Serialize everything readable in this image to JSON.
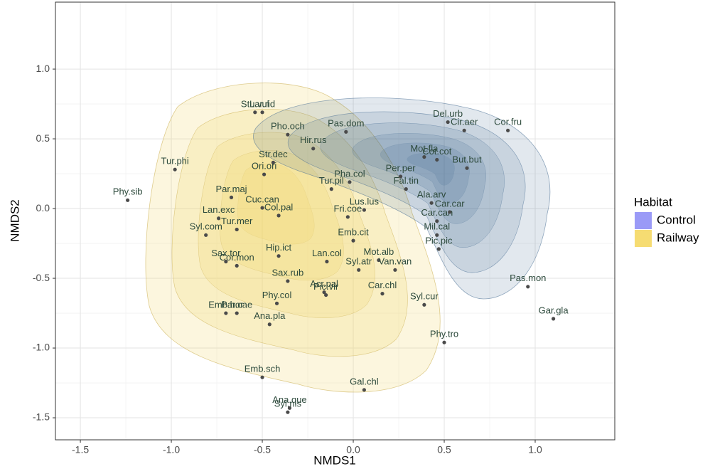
{
  "chart_data": {
    "type": "scatter",
    "x_label": "NMDS1",
    "y_label": "NMDS2",
    "xlim": [
      -1.637,
      1.4375
    ],
    "ylim": [
      -1.658,
      1.48
    ],
    "xticks": [
      -1.5,
      {
        "value": -1.0,
        "label": "-1.0"
      },
      -0.5,
      {
        "value": 0.0,
        "label": "0.0"
      },
      0.5,
      {
        "value": 1.0,
        "label": "1.0"
      }
    ],
    "yticks": [
      -1.5,
      {
        "value": -1.0,
        "label": "-1.0"
      },
      -0.5,
      {
        "value": 0.0,
        "label": "0.0"
      },
      0.5,
      {
        "value": 1.0,
        "label": "1.0"
      }
    ],
    "grid": true,
    "point_color": "#4a4a4a",
    "label_color": "#2d4a3c",
    "labels": [
      "Phy.sib",
      "Tur.phi",
      "Stu.vul",
      "Lar.rid",
      "Pho.och",
      "Pas.dom",
      "Del.urb",
      "Cor.fru",
      "Cir.aer",
      "Hir.rus",
      "Mot.fla",
      "Cot.cot",
      "But.but",
      "Str.dec",
      "Ori.ori",
      "Par.maj",
      "Pha.col",
      "Tur.pil",
      "Per.per",
      "Fal.tin",
      "Ala.arv",
      "Cuc.can",
      "Col.pal",
      "Lus.lus",
      "Car.can",
      "Car.car",
      "Lan.exc",
      "Syl.com",
      "Fri.coe",
      "Emb.cit",
      "Mil.cal",
      "Tur.mer",
      "Sax.tor",
      "Lan.col",
      "Pic.pic",
      "Hip.ict",
      "Cor.mon",
      "Mot.alb",
      "Van.van",
      "Syl.atr",
      "Sax.rub",
      "Acr.pal",
      "Pic.vir",
      "Car.chl",
      "Par.cae",
      "Phy.col",
      "Emb.hor",
      "Ana.pla",
      "Syl.cur",
      "Phy.tro",
      "Pas.mon",
      "Gar.gla",
      "Emb.sch",
      "Gal.chl",
      "Ana.que",
      "Syl.nis"
    ],
    "x": [
      -1.24,
      -0.98,
      -0.54,
      -0.5,
      -0.36,
      -0.04,
      0.52,
      0.85,
      0.61,
      -0.22,
      0.39,
      0.46,
      0.625,
      -0.44,
      -0.49,
      -0.67,
      -0.02,
      -0.12,
      0.26,
      0.29,
      0.43,
      -0.5,
      -0.41,
      0.06,
      0.46,
      0.53,
      -0.74,
      -0.81,
      -0.03,
      0.0,
      0.46,
      -0.64,
      -0.7,
      -0.145,
      0.47,
      -0.41,
      -0.64,
      0.14,
      0.23,
      0.03,
      -0.36,
      -0.16,
      -0.15,
      0.16,
      -0.64,
      -0.42,
      -0.7,
      -0.46,
      0.39,
      0.5,
      0.96,
      1.1,
      -0.5,
      0.06,
      -0.35,
      -0.36
    ],
    "values": [
      0.06,
      0.28,
      0.69,
      0.69,
      0.53,
      0.55,
      0.62,
      0.56,
      0.56,
      0.43,
      0.37,
      0.35,
      0.29,
      0.33,
      0.245,
      0.08,
      0.19,
      0.14,
      0.23,
      0.14,
      0.04,
      0.005,
      -0.05,
      -0.01,
      -0.09,
      -0.025,
      -0.07,
      -0.19,
      -0.06,
      -0.23,
      -0.19,
      -0.15,
      -0.38,
      -0.38,
      -0.29,
      -0.34,
      -0.41,
      -0.37,
      -0.44,
      -0.44,
      -0.52,
      -0.6,
      -0.62,
      -0.61,
      -0.75,
      -0.68,
      -0.75,
      -0.83,
      -0.69,
      -0.96,
      -0.56,
      -0.79,
      -1.21,
      -1.3,
      -1.43,
      -1.46
    ],
    "legend": {
      "title": "Habitat",
      "items": [
        {
          "name": "Control",
          "color": "#9a9af7"
        },
        {
          "name": "Railway",
          "color": "#f6dc72"
        }
      ]
    }
  }
}
